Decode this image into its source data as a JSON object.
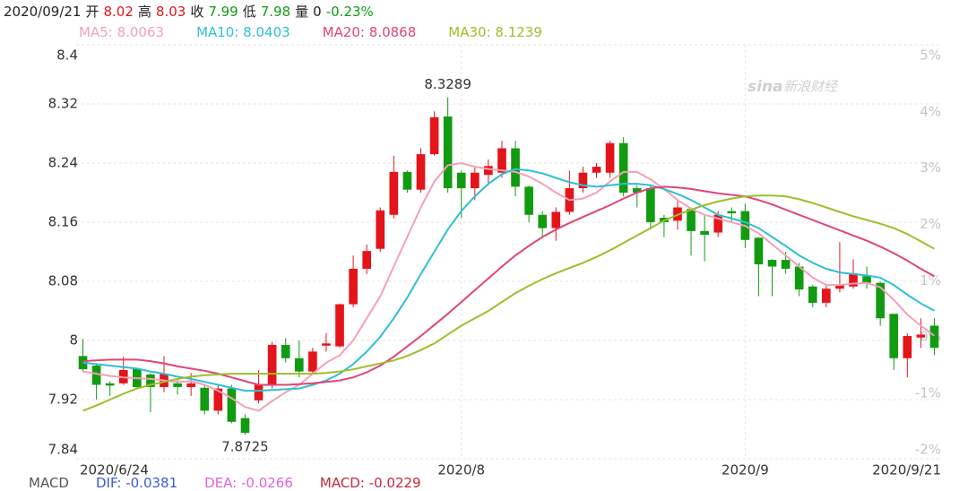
{
  "header": {
    "date": "2020/09/21",
    "items": [
      {
        "label": "开",
        "value": "8.02",
        "color": "#e4141b"
      },
      {
        "label": "高",
        "value": "8.03",
        "color": "#e4141b"
      },
      {
        "label": "收",
        "value": "7.99",
        "color": "#119b11"
      },
      {
        "label": "低",
        "value": "7.98",
        "color": "#119b11"
      },
      {
        "label": "量",
        "value": "0",
        "color": "#222222"
      }
    ],
    "change": "-0.23%",
    "change_color": "#119b11"
  },
  "chart_data": {
    "type": "candlestick",
    "categories": [
      "2020/6/24",
      null,
      null,
      null,
      null,
      null,
      null,
      null,
      null,
      null,
      null,
      null,
      null,
      null,
      null,
      null,
      null,
      null,
      null,
      null,
      null,
      null,
      null,
      null,
      null,
      null,
      null,
      null,
      "2020/8",
      null,
      null,
      null,
      null,
      null,
      null,
      null,
      null,
      null,
      null,
      null,
      null,
      null,
      null,
      null,
      null,
      null,
      null,
      null,
      null,
      "2020/9",
      null,
      null,
      null,
      null,
      null,
      null,
      null,
      null,
      null,
      null,
      null,
      null,
      null,
      "2020/9/21"
    ],
    "open": [
      7.979,
      7.966,
      7.942,
      7.942,
      7.962,
      7.954,
      7.937,
      7.942,
      7.937,
      7.936,
      7.905,
      7.935,
      7.895,
      7.919,
      7.94,
      7.994,
      7.976,
      7.958,
      7.993,
      7.992,
      8.049,
      8.097,
      8.124,
      8.17,
      8.228,
      8.204,
      8.252,
      8.303,
      8.227,
      8.206,
      8.224,
      8.227,
      8.26,
      8.208,
      8.17,
      8.152,
      8.174,
      8.206,
      8.227,
      8.227,
      8.267,
      8.206,
      8.206,
      8.166,
      8.162,
      8.178,
      8.148,
      8.146,
      8.175,
      8.175,
      8.139,
      8.109,
      8.109,
      8.1,
      8.073,
      8.051,
      8.07,
      8.073,
      8.087,
      8.078,
      8.036,
      7.976,
      8.004,
      8.02
    ],
    "high": [
      8.002,
      7.968,
      7.945,
      7.978,
      7.962,
      7.956,
      7.979,
      7.948,
      7.956,
      7.94,
      7.94,
      7.94,
      7.9,
      7.96,
      7.998,
      8.003,
      8.0,
      7.99,
      8.01,
      8.05,
      8.115,
      8.13,
      8.18,
      8.25,
      8.23,
      8.26,
      8.31,
      8.3289,
      8.23,
      8.235,
      8.245,
      8.27,
      8.27,
      8.21,
      8.175,
      8.18,
      8.23,
      8.235,
      8.24,
      8.27,
      8.275,
      8.21,
      8.21,
      8.17,
      8.19,
      8.18,
      8.17,
      8.175,
      8.18,
      8.185,
      8.14,
      8.11,
      8.12,
      8.105,
      8.075,
      8.075,
      8.133,
      8.11,
      8.1,
      8.08,
      8.036,
      8.01,
      8.03,
      8.03
    ],
    "low": [
      7.958,
      7.92,
      7.925,
      7.94,
      7.935,
      7.903,
      7.93,
      7.927,
      7.925,
      7.9,
      7.9,
      7.888,
      7.8725,
      7.915,
      7.935,
      7.97,
      7.95,
      7.955,
      7.985,
      7.99,
      8.045,
      8.09,
      8.12,
      8.165,
      8.2,
      8.2,
      8.25,
      8.2,
      8.166,
      8.19,
      8.21,
      8.22,
      8.195,
      8.16,
      8.14,
      8.135,
      8.17,
      8.2,
      8.22,
      8.22,
      8.195,
      8.18,
      8.15,
      8.14,
      8.15,
      8.115,
      8.107,
      8.14,
      8.16,
      8.125,
      8.06,
      8.06,
      8.09,
      8.06,
      8.045,
      8.045,
      8.065,
      8.07,
      8.07,
      8.02,
      7.96,
      7.95,
      7.99,
      7.98
    ],
    "close": [
      7.961,
      7.94,
      7.939,
      7.96,
      7.937,
      7.937,
      7.955,
      7.937,
      7.942,
      7.905,
      7.935,
      7.89,
      7.875,
      7.94,
      7.994,
      7.976,
      7.958,
      7.985,
      7.996,
      8.049,
      8.097,
      8.121,
      8.176,
      8.228,
      8.204,
      8.252,
      8.302,
      8.206,
      8.206,
      8.227,
      8.236,
      8.26,
      8.208,
      8.17,
      8.152,
      8.174,
      8.206,
      8.227,
      8.235,
      8.267,
      8.2,
      8.2,
      8.16,
      8.16,
      8.18,
      8.148,
      8.143,
      8.17,
      8.172,
      8.136,
      8.103,
      8.1,
      8.097,
      8.069,
      8.051,
      8.07,
      8.075,
      8.091,
      8.078,
      8.03,
      7.976,
      8.006,
      8.008,
      7.99
    ],
    "up_color": "#e4141b",
    "down_color": "#119b11",
    "series": [
      {
        "name": "MA5: 8.0063",
        "color": "#f4a0b9",
        "values": [
          7.958,
          7.955,
          7.952,
          7.95,
          7.949,
          7.948,
          7.946,
          7.944,
          7.945,
          7.94,
          7.932,
          7.922,
          7.91,
          7.905,
          7.918,
          7.93,
          7.94,
          7.955,
          7.97,
          7.98,
          8.0,
          8.03,
          8.06,
          8.1,
          8.14,
          8.18,
          8.215,
          8.237,
          8.24,
          8.235,
          8.232,
          8.23,
          8.228,
          8.222,
          8.212,
          8.2,
          8.19,
          8.192,
          8.2,
          8.215,
          8.228,
          8.228,
          8.218,
          8.205,
          8.19,
          8.178,
          8.17,
          8.165,
          8.16,
          8.155,
          8.145,
          8.13,
          8.115,
          8.1,
          8.085,
          8.075,
          8.075,
          8.077,
          8.078,
          8.072,
          8.055,
          8.035,
          8.02,
          8.0063
        ]
      },
      {
        "name": "MA10: 8.0403",
        "color": "#2ebfd6",
        "values": [
          7.97,
          7.968,
          7.966,
          7.964,
          7.962,
          7.958,
          7.955,
          7.951,
          7.948,
          7.944,
          7.94,
          7.936,
          7.932,
          7.932,
          7.933,
          7.934,
          7.935,
          7.94,
          7.946,
          7.955,
          7.968,
          7.985,
          8.005,
          8.03,
          8.058,
          8.09,
          8.12,
          8.15,
          8.175,
          8.195,
          8.212,
          8.225,
          8.232,
          8.23,
          8.226,
          8.22,
          8.214,
          8.21,
          8.208,
          8.21,
          8.212,
          8.212,
          8.21,
          8.205,
          8.198,
          8.19,
          8.18,
          8.17,
          8.165,
          8.16,
          8.152,
          8.14,
          8.128,
          8.115,
          8.105,
          8.097,
          8.092,
          8.09,
          8.088,
          8.085,
          8.075,
          8.062,
          8.05,
          8.0403
        ]
      },
      {
        "name": "MA20: 8.0868",
        "color": "#e0447a",
        "values": [
          7.972,
          7.973,
          7.974,
          7.974,
          7.974,
          7.972,
          7.969,
          7.965,
          7.962,
          7.959,
          7.955,
          7.95,
          7.945,
          7.94,
          7.94,
          7.94,
          7.941,
          7.942,
          7.944,
          7.946,
          7.95,
          7.957,
          7.966,
          7.978,
          7.992,
          8.006,
          8.021,
          8.036,
          8.052,
          8.068,
          8.084,
          8.1,
          8.115,
          8.128,
          8.14,
          8.15,
          8.159,
          8.167,
          8.175,
          8.183,
          8.192,
          8.2,
          8.206,
          8.208,
          8.207,
          8.205,
          8.202,
          8.199,
          8.197,
          8.195,
          8.19,
          8.184,
          8.177,
          8.17,
          8.163,
          8.156,
          8.149,
          8.142,
          8.135,
          8.127,
          8.118,
          8.108,
          8.097,
          8.0868
        ]
      },
      {
        "name": "MA30: 8.1239",
        "color": "#9cbf2b",
        "values": [
          7.905,
          7.912,
          7.92,
          7.928,
          7.935,
          7.94,
          7.944,
          7.948,
          7.951,
          7.953,
          7.954,
          7.955,
          7.955,
          7.955,
          7.955,
          7.955,
          7.955,
          7.955,
          7.956,
          7.958,
          7.961,
          7.965,
          7.969,
          7.973,
          7.979,
          7.987,
          7.996,
          8.008,
          8.02,
          8.03,
          8.04,
          8.052,
          8.064,
          8.074,
          8.083,
          8.091,
          8.098,
          8.105,
          8.113,
          8.122,
          8.132,
          8.142,
          8.152,
          8.162,
          8.17,
          8.177,
          8.183,
          8.188,
          8.192,
          8.195,
          8.196,
          8.196,
          8.195,
          8.191,
          8.186,
          8.18,
          8.174,
          8.168,
          8.163,
          8.158,
          8.152,
          8.144,
          8.134,
          8.1239
        ]
      }
    ],
    "ylim": [
      7.84,
      8.4
    ],
    "yticks": [
      7.84,
      7.92,
      8,
      8.08,
      8.16,
      8.24,
      8.32,
      8.4
    ],
    "y2lim": [
      -2.16,
      5.19
    ],
    "y2ticks": [
      {
        "value": -2,
        "label": "-2%"
      },
      {
        "value": -1,
        "label": "-1%"
      },
      {
        "value": 0,
        "label": "0%"
      },
      {
        "value": 1,
        "label": "1%"
      },
      {
        "value": 2,
        "label": "2%"
      },
      {
        "value": 3,
        "label": "3%"
      },
      {
        "value": 4,
        "label": "4%"
      },
      {
        "value": 5,
        "label": "5%"
      }
    ],
    "grid": true,
    "annotations": [
      {
        "label": "8.3289",
        "value": 8.3289
      },
      {
        "label": "7.8725",
        "value": 7.8725
      }
    ],
    "watermark": {
      "logo": "sina",
      "text": "新浪财经"
    }
  },
  "macd": {
    "title": "MACD",
    "items": [
      {
        "text": "DIF: -0.0381",
        "color": "#3a5bdc"
      },
      {
        "text": "DEA: -0.0266",
        "color": "#e35fd8"
      },
      {
        "text": "MACD: -0.0229",
        "color": "#c8263a"
      }
    ]
  }
}
